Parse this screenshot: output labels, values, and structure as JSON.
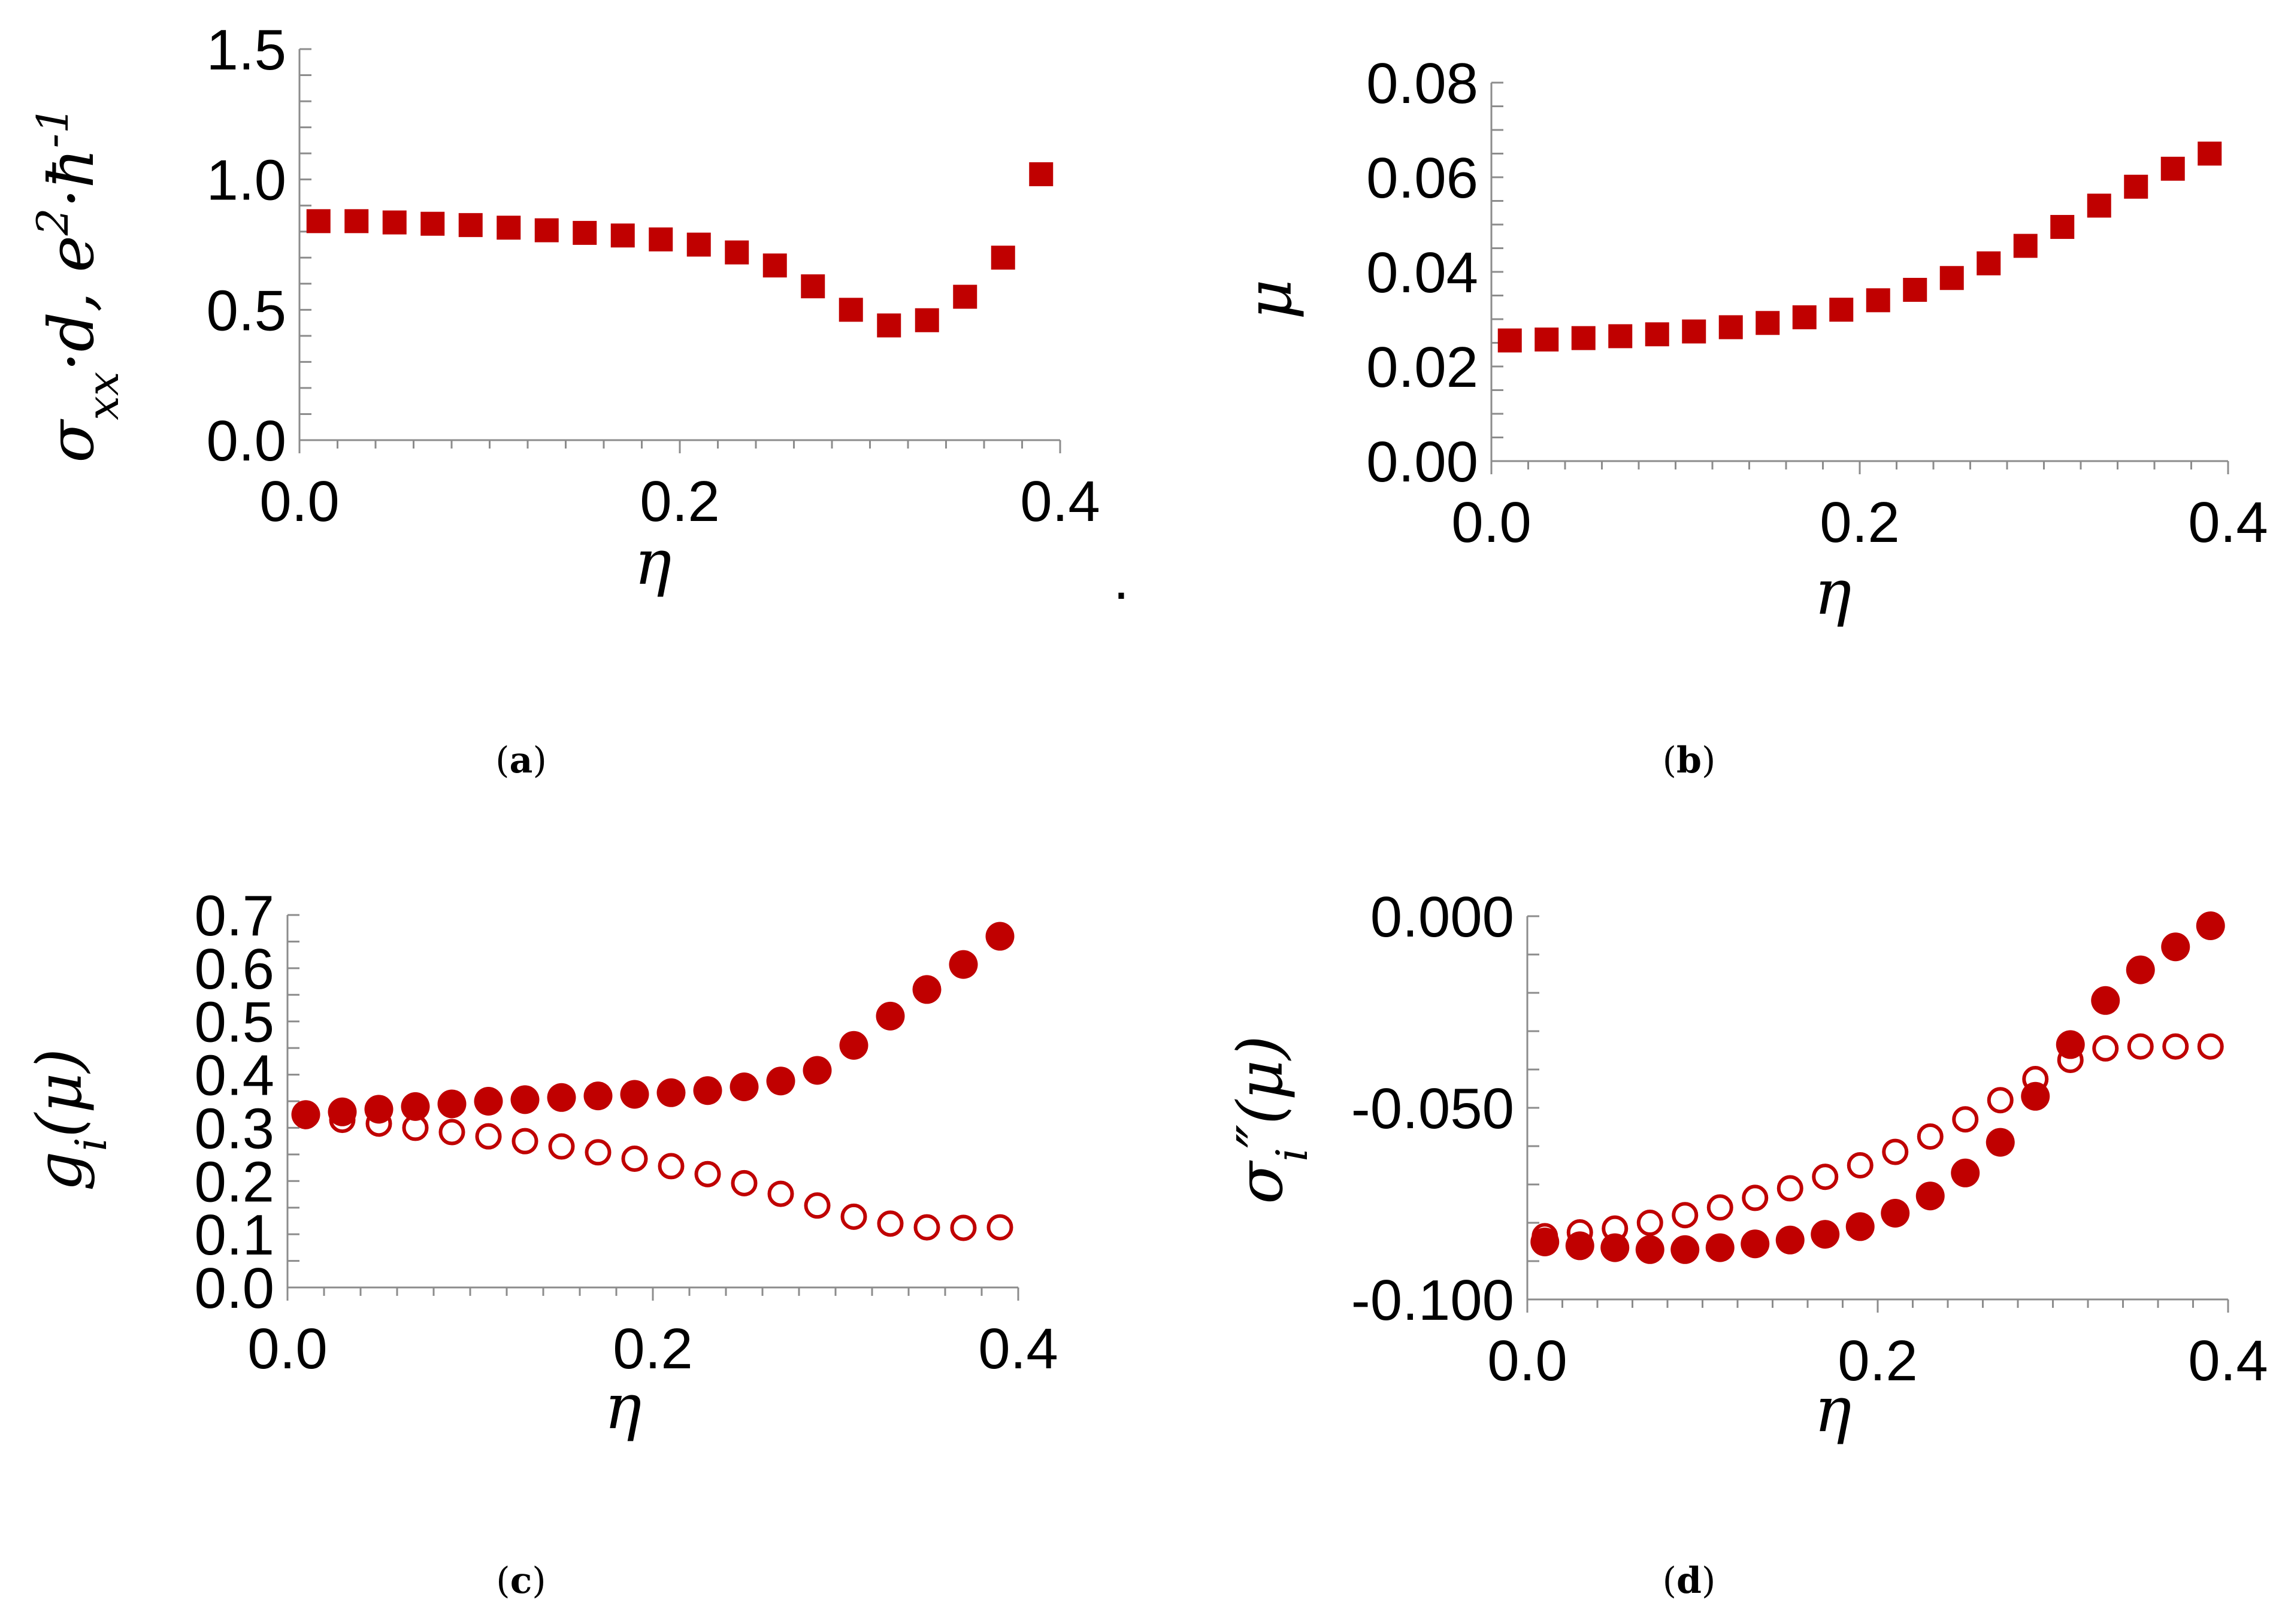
{
  "colors": {
    "marker": "#c00000",
    "axis": "#8c8c8c",
    "text": "#000000"
  },
  "stray_mark": ".",
  "chart_data": [
    {
      "id": "a",
      "type": "scatter",
      "panel_label": "a",
      "xlabel": "η",
      "ylabel_parts": {
        "s1": "σ",
        "sub1": "xx",
        "s2": "·d, e",
        "sup1": "2",
        "s3": "·ħ",
        "sup2": "-1"
      },
      "xlim": [
        0,
        0.4
      ],
      "ylim": [
        0,
        1.5
      ],
      "xticks": [
        "0.0",
        "0.2",
        "0.4"
      ],
      "xtick_values": [
        0,
        0.2,
        0.4
      ],
      "yticks": [
        "0.0",
        "0.5",
        "1.0",
        "1.5"
      ],
      "ytick_values": [
        0,
        0.5,
        1.0,
        1.5
      ],
      "minor_x_step": 0.02,
      "minor_y_step": 0.1,
      "series": [
        {
          "name": "σxx·d",
          "marker": "square-filled",
          "x": [
            0.01,
            0.03,
            0.05,
            0.07,
            0.09,
            0.11,
            0.13,
            0.15,
            0.17,
            0.19,
            0.21,
            0.23,
            0.25,
            0.27,
            0.29,
            0.31,
            0.33,
            0.35,
            0.37,
            0.39
          ],
          "y": [
            0.84,
            0.84,
            0.835,
            0.83,
            0.825,
            0.815,
            0.805,
            0.795,
            0.785,
            0.77,
            0.75,
            0.72,
            0.67,
            0.59,
            0.5,
            0.44,
            0.46,
            0.55,
            0.7,
            1.02
          ]
        }
      ]
    },
    {
      "id": "b",
      "type": "scatter",
      "panel_label": "b",
      "xlabel": "η",
      "ylabel_parts": {
        "s1": "μ"
      },
      "xlim": [
        0,
        0.4
      ],
      "ylim": [
        0,
        0.08
      ],
      "xticks": [
        "0.0",
        "0.2",
        "0.4"
      ],
      "xtick_values": [
        0,
        0.2,
        0.4
      ],
      "yticks": [
        "0.00",
        "0.02",
        "0.04",
        "0.06",
        "0.08"
      ],
      "ytick_values": [
        0,
        0.02,
        0.04,
        0.06,
        0.08
      ],
      "minor_x_step": 0.02,
      "minor_y_step": 0.005,
      "series": [
        {
          "name": "μ",
          "marker": "square-filled",
          "x": [
            0.01,
            0.03,
            0.05,
            0.07,
            0.09,
            0.11,
            0.13,
            0.15,
            0.17,
            0.19,
            0.21,
            0.23,
            0.25,
            0.27,
            0.29,
            0.31,
            0.33,
            0.35,
            0.37,
            0.39
          ],
          "y": [
            0.0255,
            0.0257,
            0.026,
            0.0264,
            0.0268,
            0.0274,
            0.0283,
            0.0292,
            0.0304,
            0.032,
            0.034,
            0.0362,
            0.0387,
            0.0418,
            0.0455,
            0.0495,
            0.054,
            0.058,
            0.0618,
            0.065
          ]
        }
      ]
    },
    {
      "id": "c",
      "type": "scatter",
      "panel_label": "c",
      "xlabel": "η",
      "ylabel_parts": {
        "s1": "g",
        "sub1": "i",
        "s2": "(μ)"
      },
      "xlim": [
        0,
        0.4
      ],
      "ylim": [
        0,
        0.7
      ],
      "xticks": [
        "0.0",
        "0.2",
        "0.4"
      ],
      "xtick_values": [
        0,
        0.2,
        0.4
      ],
      "yticks": [
        "0.0",
        "0.1",
        "0.2",
        "0.3",
        "0.4",
        "0.5",
        "0.6",
        "0.7"
      ],
      "ytick_values": [
        0,
        0.1,
        0.2,
        0.3,
        0.4,
        0.5,
        0.6,
        0.7
      ],
      "minor_x_step": 0.02,
      "minor_y_step": 0.05,
      "series": [
        {
          "name": "filled",
          "marker": "circle-filled",
          "x": [
            0.01,
            0.03,
            0.05,
            0.07,
            0.09,
            0.11,
            0.13,
            0.15,
            0.17,
            0.19,
            0.21,
            0.23,
            0.25,
            0.27,
            0.29,
            0.31,
            0.33,
            0.35,
            0.37,
            0.39
          ],
          "y": [
            0.325,
            0.33,
            0.335,
            0.34,
            0.345,
            0.35,
            0.353,
            0.357,
            0.36,
            0.363,
            0.366,
            0.37,
            0.377,
            0.388,
            0.408,
            0.455,
            0.51,
            0.56,
            0.607,
            0.66
          ]
        },
        {
          "name": "open",
          "marker": "circle-open",
          "x": [
            0.01,
            0.03,
            0.05,
            0.07,
            0.09,
            0.11,
            0.13,
            0.15,
            0.17,
            0.19,
            0.21,
            0.23,
            0.25,
            0.27,
            0.29,
            0.31,
            0.33,
            0.35,
            0.37,
            0.39
          ],
          "y": [
            0.322,
            0.315,
            0.308,
            0.3,
            0.292,
            0.284,
            0.275,
            0.265,
            0.254,
            0.242,
            0.228,
            0.213,
            0.196,
            0.176,
            0.154,
            0.133,
            0.12,
            0.113,
            0.112,
            0.113
          ]
        }
      ]
    },
    {
      "id": "d",
      "type": "scatter",
      "panel_label": "d",
      "xlabel": "η",
      "ylabel_parts": {
        "s1": "σ",
        "sub1": "i",
        "s2": "″(μ)"
      },
      "xlim": [
        0,
        0.4
      ],
      "ylim": [
        -0.1,
        0
      ],
      "xticks": [
        "0.0",
        "0.2",
        "0.4"
      ],
      "xtick_values": [
        0,
        0.2,
        0.4
      ],
      "yticks": [
        "-0.100",
        "-0.050",
        "0.000"
      ],
      "ytick_values": [
        -0.1,
        -0.05,
        0
      ],
      "minor_x_step": 0.02,
      "minor_y_step": 0.01,
      "series": [
        {
          "name": "filled",
          "marker": "circle-filled",
          "x": [
            0.01,
            0.03,
            0.05,
            0.07,
            0.09,
            0.11,
            0.13,
            0.15,
            0.17,
            0.19,
            0.21,
            0.23,
            0.25,
            0.27,
            0.29,
            0.31,
            0.33,
            0.35,
            0.37,
            0.39
          ],
          "y": [
            -0.085,
            -0.086,
            -0.0865,
            -0.087,
            -0.087,
            -0.0865,
            -0.0855,
            -0.0845,
            -0.083,
            -0.081,
            -0.0775,
            -0.073,
            -0.067,
            -0.059,
            -0.047,
            -0.0335,
            -0.022,
            -0.014,
            -0.008,
            -0.0025
          ]
        },
        {
          "name": "open",
          "marker": "circle-open",
          "x": [
            0.01,
            0.03,
            0.05,
            0.07,
            0.09,
            0.11,
            0.13,
            0.15,
            0.17,
            0.19,
            0.21,
            0.23,
            0.25,
            0.27,
            0.29,
            0.31,
            0.33,
            0.35,
            0.37,
            0.39
          ],
          "y": [
            -0.0835,
            -0.0825,
            -0.0815,
            -0.08,
            -0.078,
            -0.076,
            -0.0735,
            -0.071,
            -0.068,
            -0.065,
            -0.0615,
            -0.0575,
            -0.053,
            -0.048,
            -0.0425,
            -0.0375,
            -0.0345,
            -0.034,
            -0.034,
            -0.034
          ]
        }
      ]
    }
  ]
}
